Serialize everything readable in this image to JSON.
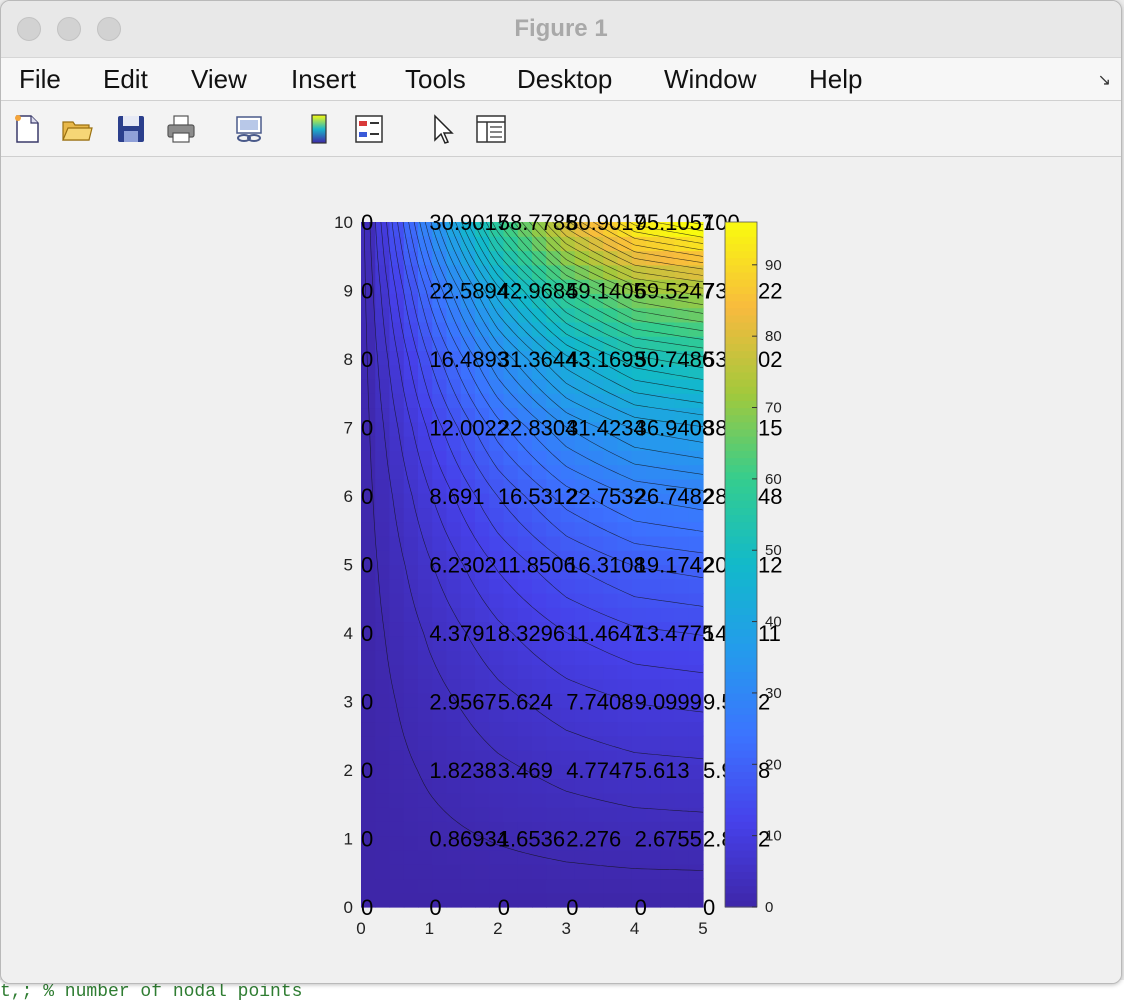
{
  "window": {
    "title": "Figure 1"
  },
  "menubar": {
    "items": [
      "File",
      "Edit",
      "View",
      "Insert",
      "Tools",
      "Desktop",
      "Window",
      "Help"
    ]
  },
  "toolbar": {
    "icons": [
      "new-figure-icon",
      "open-file-icon",
      "save-icon",
      "print-icon",
      "link-plot-icon",
      "insert-colorbar-icon",
      "insert-legend-icon",
      "edit-plot-pointer-icon",
      "property-inspector-icon"
    ]
  },
  "backdrop": {
    "text": "t,; % number of nodal points"
  },
  "chart_data": {
    "type": "heatmap",
    "title": "",
    "xlabel": "",
    "ylabel": "",
    "xlim": [
      0,
      5
    ],
    "ylim": [
      0,
      10
    ],
    "x": [
      0,
      1,
      2,
      3,
      4,
      5
    ],
    "y": [
      0,
      1,
      2,
      3,
      4,
      5,
      6,
      7,
      8,
      9,
      10
    ],
    "x_tick_labels": [
      "0",
      "1",
      "2",
      "3",
      "4",
      "5"
    ],
    "y_tick_labels": [
      "0",
      "1",
      "2",
      "3",
      "4",
      "5",
      "6",
      "7",
      "8",
      "9",
      "10"
    ],
    "colorbar": {
      "range": [
        0,
        96
      ],
      "tick_labels": [
        "0",
        "10",
        "20",
        "30",
        "40",
        "50",
        "60",
        "70",
        "80",
        "90"
      ],
      "colormap": "parula"
    },
    "rows": [
      [
        "0",
        "0",
        "0",
        "0",
        "0",
        "0"
      ],
      [
        "0",
        "0.86934",
        "1.6536",
        "2.276",
        "2.6755",
        "2.8132"
      ],
      [
        "0",
        "1.8238",
        "3.469",
        "4.7747",
        "5.613",
        "5.9018"
      ],
      [
        "0",
        "2.9567",
        "5.624",
        "7.7408",
        "9.0999",
        "9.5682"
      ],
      [
        "0",
        "4.3791",
        "8.3296",
        "11.4647",
        "13.4775",
        "14.1711"
      ],
      [
        "0",
        "6.2302",
        "11.8506",
        "16.3108",
        "19.1742",
        "20.1612"
      ],
      [
        "0",
        "8.691",
        "16.5312",
        "22.7532",
        "26.7482",
        "28.1248"
      ],
      [
        "0",
        "12.0022",
        "22.8304",
        "31.4234",
        "36.9408",
        "38.8415"
      ],
      [
        "0",
        "16.4893",
        "31.3644",
        "43.1693",
        "50.7486",
        "53.3602"
      ],
      [
        "0",
        "22.5894",
        "42.9684",
        "59.1405",
        "69.5247",
        "73.1022"
      ],
      [
        "0",
        "30.9017",
        "58.7785",
        "80.9017",
        "95.1057",
        "100"
      ]
    ]
  }
}
